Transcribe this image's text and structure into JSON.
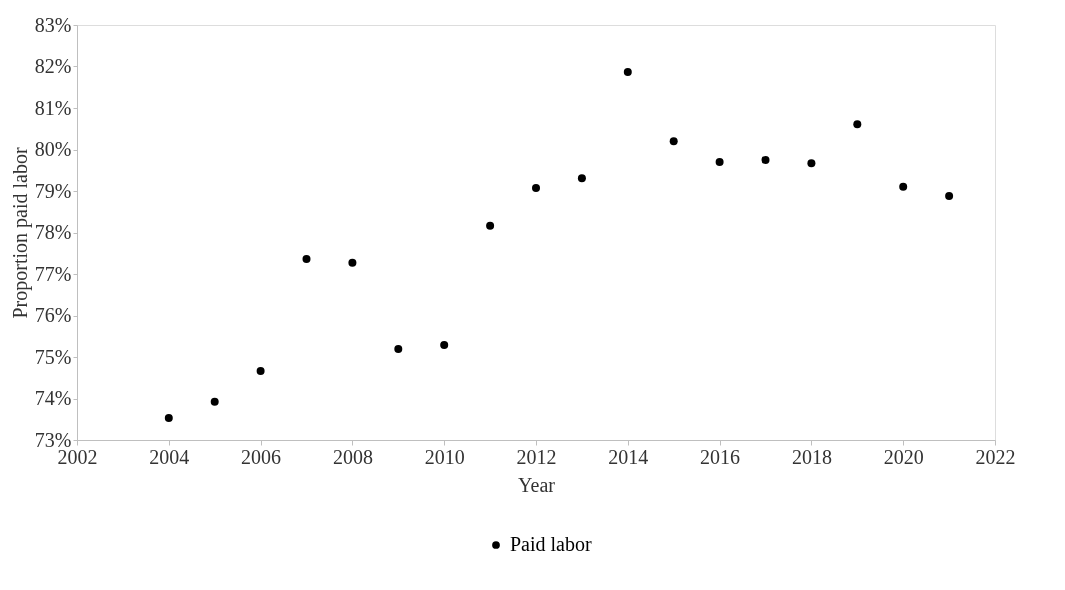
{
  "chart_data": {
    "type": "scatter",
    "xlabel": "Year",
    "ylabel": "Proportion paid labor",
    "x": [
      2004,
      2005,
      2006,
      2007,
      2008,
      2009,
      2010,
      2011,
      2012,
      2013,
      2014,
      2015,
      2016,
      2017,
      2018,
      2019,
      2020,
      2021
    ],
    "series": [
      {
        "name": "Paid labor",
        "color": "#000000",
        "values": [
          73.53,
          73.92,
          74.66,
          77.36,
          77.27,
          75.19,
          75.29,
          78.16,
          79.07,
          79.31,
          81.87,
          80.2,
          79.7,
          79.75,
          79.67,
          80.61,
          79.1,
          78.88
        ]
      }
    ],
    "xlim": [
      2002,
      2022
    ],
    "xticks": [
      2002,
      2004,
      2006,
      2008,
      2010,
      2012,
      2014,
      2016,
      2018,
      2020,
      2022
    ],
    "ylim": [
      73,
      83
    ],
    "yticks": [
      {
        "value": 73,
        "label": "73%"
      },
      {
        "value": 74,
        "label": "74%"
      },
      {
        "value": 75,
        "label": "75%"
      },
      {
        "value": 76,
        "label": "76%"
      },
      {
        "value": 77,
        "label": "77%"
      },
      {
        "value": 78,
        "label": "78%"
      },
      {
        "value": 79,
        "label": "79%"
      },
      {
        "value": 80,
        "label": "80%"
      },
      {
        "value": 81,
        "label": "81%"
      },
      {
        "value": 82,
        "label": "82%"
      },
      {
        "value": 83,
        "label": "83%"
      }
    ],
    "grid": false,
    "legend": "bottom",
    "marker": "circle"
  }
}
